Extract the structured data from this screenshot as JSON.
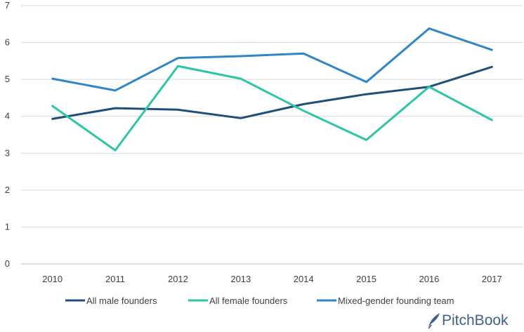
{
  "chart_data": {
    "type": "line",
    "x": [
      "2010",
      "2011",
      "2012",
      "2013",
      "2014",
      "2015",
      "2016",
      "2017"
    ],
    "ylim": [
      0,
      7
    ],
    "yticks": [
      "0",
      "1",
      "2",
      "3",
      "4",
      "5",
      "6",
      "7"
    ],
    "grid": true,
    "legend_position": "bottom",
    "series": [
      {
        "name": "All male founders",
        "color": "#1f4e79",
        "values": [
          3.93,
          4.22,
          4.18,
          3.95,
          4.33,
          4.6,
          4.8,
          5.34
        ]
      },
      {
        "name": "All female founders",
        "color": "#2ec4a6",
        "values": [
          4.28,
          3.08,
          5.36,
          5.02,
          4.15,
          3.36,
          4.8,
          3.9
        ]
      },
      {
        "name": "Mixed-gender founding team",
        "color": "#2e86c8",
        "values": [
          5.02,
          4.7,
          5.58,
          5.63,
          5.7,
          4.93,
          6.38,
          5.8
        ]
      }
    ]
  },
  "brand": {
    "logo_text": "PitchBook",
    "logo_icon": "feather-icon",
    "logo_color": "#3f5f8a"
  }
}
